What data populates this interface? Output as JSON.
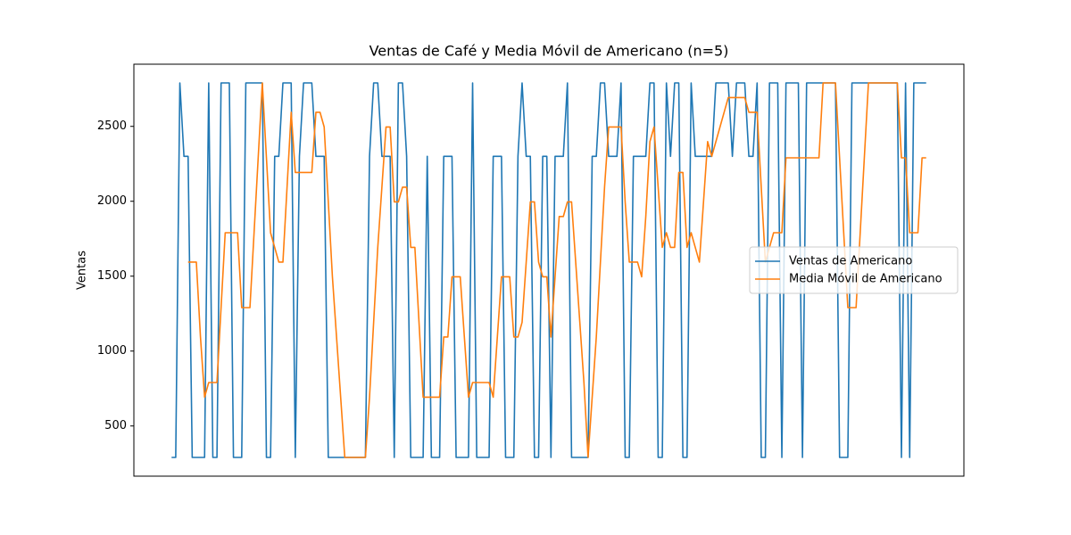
{
  "chart_data": {
    "type": "line",
    "title": "Ventas de Café y Media Móvil de Americano (n=5)",
    "ylabel": "Ventas",
    "ylim": [
      165,
      2915
    ],
    "yticks": [
      500,
      1000,
      1500,
      2000,
      2500
    ],
    "legend": "center right",
    "series": [
      {
        "name": "Ventas de Americano",
        "color": "#1f77b4",
        "values": [
          290,
          290,
          2790,
          2300,
          2300,
          290,
          290,
          290,
          290,
          2790,
          290,
          290,
          2790,
          2790,
          2790,
          290,
          290,
          290,
          2790,
          2790,
          2790,
          2790,
          2790,
          290,
          290,
          2300,
          2300,
          2790,
          2790,
          2790,
          290,
          2300,
          2790,
          2790,
          2790,
          2300,
          2300,
          2300,
          290,
          290,
          290,
          290,
          290,
          290,
          290,
          290,
          290,
          290,
          2300,
          2790,
          2790,
          2300,
          2300,
          2300,
          290,
          2790,
          2790,
          2300,
          290,
          290,
          290,
          290,
          2300,
          290,
          290,
          290,
          2300,
          2300,
          2300,
          290,
          290,
          290,
          290,
          2790,
          290,
          290,
          290,
          290,
          2300,
          2300,
          2300,
          290,
          290,
          290,
          2300,
          2790,
          2300,
          2300,
          290,
          290,
          2300,
          2300,
          290,
          2300,
          2300,
          2300,
          2790,
          290,
          290,
          290,
          290,
          290,
          2300,
          2300,
          2790,
          2790,
          2300,
          2300,
          2300,
          2790,
          290,
          290,
          2300,
          2300,
          2300,
          2300,
          2790,
          2790,
          290,
          290,
          2790,
          2300,
          2790,
          2790,
          290,
          290,
          2790,
          2300,
          2300,
          2300,
          2300,
          2300,
          2790,
          2790,
          2790,
          2790,
          2300,
          2790,
          2790,
          2790,
          2300,
          2300,
          2790,
          290,
          290,
          2790,
          2790,
          2790,
          290,
          2790,
          2790,
          2790,
          2790,
          290,
          2790,
          2790,
          2790,
          2790,
          2790,
          2790,
          2790,
          2790,
          290,
          290,
          290,
          2790,
          2790,
          2790,
          2790,
          2790,
          2790,
          2790,
          2790,
          2790,
          2790,
          2790,
          2790,
          290,
          2790,
          290,
          2790,
          2790,
          2790,
          2790
        ]
      },
      {
        "name": "Media Móvil de Americano",
        "color": "#ff7f0e",
        "values": [
          null,
          null,
          null,
          null,
          1594,
          1594,
          1594,
          1094,
          692,
          790,
          790,
          790,
          1290,
          1790,
          1790,
          1790,
          1790,
          1290,
          1290,
          1290,
          1790,
          2290,
          2790,
          2290,
          1790,
          1692,
          1594,
          1594,
          2094,
          2594,
          2192,
          2192,
          2192,
          2192,
          2192,
          2594,
          2594,
          2496,
          1996,
          1496,
          1094,
          692,
          290,
          290,
          290,
          290,
          290,
          290,
          692,
          1192,
          1692,
          2094,
          2496,
          2496,
          1996,
          1996,
          2094,
          2094,
          1692,
          1692,
          1192,
          692,
          692,
          692,
          692,
          692,
          1094,
          1094,
          1496,
          1496,
          1496,
          1094,
          692,
          790,
          790,
          790,
          790,
          790,
          692,
          1094,
          1496,
          1496,
          1496,
          1094,
          1094,
          1192,
          1594,
          1996,
          1996,
          1594,
          1496,
          1496,
          1094,
          1496,
          1898,
          1898,
          1996,
          1996,
          1594,
          1192,
          790,
          290,
          692,
          1094,
          1594,
          2094,
          2496,
          2496,
          2496,
          2496,
          1996,
          1594,
          1594,
          1594,
          1496,
          1898,
          2398,
          2496,
          2094,
          1692,
          1790,
          1692,
          1692,
          2192,
          2192,
          1692,
          1790,
          1692,
          1594,
          1996,
          2398,
          2300,
          2398,
          2496,
          2594,
          2692,
          2692,
          2692,
          2692,
          2692,
          2594,
          2594,
          2594,
          2094,
          1594,
          1692,
          1790,
          1790,
          1790,
          2290,
          2290,
          2290,
          2290,
          2290,
          2290,
          2290,
          2290,
          2290,
          2790,
          2790,
          2790,
          2790,
          2290,
          1790,
          1290,
          1290,
          1290,
          1790,
          2290,
          2790,
          2790,
          2790,
          2790,
          2790,
          2790,
          2790,
          2790,
          2290,
          2290,
          1790,
          1790,
          1790,
          2290,
          2290
        ]
      }
    ]
  }
}
